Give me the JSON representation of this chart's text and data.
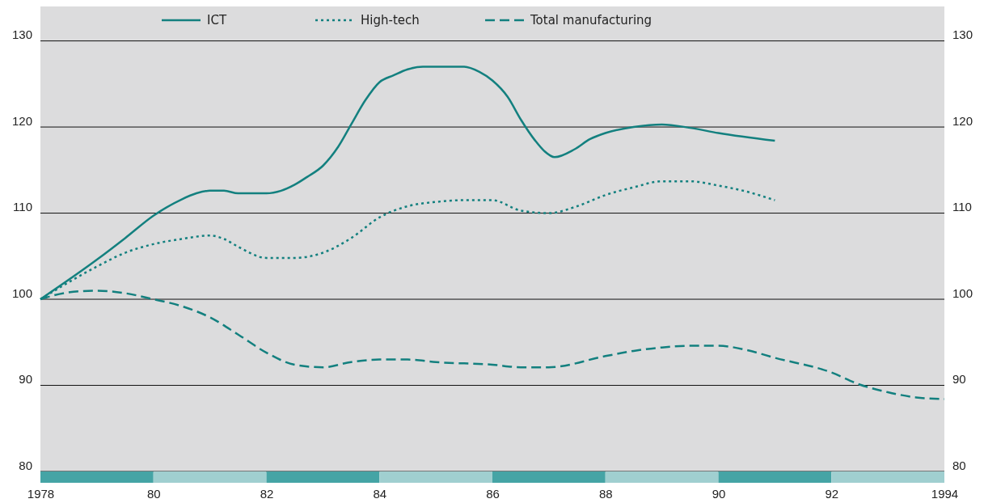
{
  "chart_data": {
    "type": "line",
    "xlim": [
      1978,
      1994
    ],
    "xticks": [
      1978,
      {
        "value": 1980,
        "label": "80"
      },
      {
        "value": 1982,
        "label": "82"
      },
      {
        "value": 1984,
        "label": "84"
      },
      {
        "value": 1986,
        "label": "86"
      },
      {
        "value": 1988,
        "label": "88"
      },
      {
        "value": 1990,
        "label": "90"
      },
      {
        "value": 1992,
        "label": "92"
      },
      1994
    ],
    "ylim": [
      80,
      134
    ],
    "yticks": [
      80,
      90,
      100,
      110,
      120,
      130
    ],
    "y2lim": [
      80,
      134
    ],
    "y2ticks": [
      80,
      90,
      100,
      110,
      120,
      130
    ],
    "grid": "y",
    "legend": "top",
    "marker": "none",
    "series": [
      {
        "name": "ICT",
        "color": "#13807f",
        "line_style": "solid",
        "x": [
          1978,
          1979,
          1979.5,
          1980,
          1980.5,
          1980.76,
          1981,
          1981.25,
          1981.5,
          1982,
          1982.26,
          1982.5,
          1982.72,
          1983,
          1983.27,
          1983.5,
          1983.75,
          1984,
          1984.25,
          1984.5,
          1984.77,
          1985.5,
          1985.77,
          1986,
          1986.27,
          1986.5,
          1986.76,
          1986.92,
          1987.1,
          1987.45,
          1987.73,
          1988,
          1988.5,
          1989,
          1989.5,
          1990,
          1991
        ],
        "values": [
          100,
          104.6,
          107.1,
          109.7,
          111.6,
          112.3,
          112.6,
          112.6,
          112.3,
          112.3,
          112.6,
          113.3,
          114.2,
          115.5,
          117.7,
          120.3,
          123.1,
          125.2,
          126,
          126.7,
          127,
          127,
          126.4,
          125.4,
          123.5,
          120.9,
          118.4,
          117.2,
          116.5,
          117.4,
          118.6,
          119.3,
          120,
          120.3,
          119.9,
          119.3,
          118.4
        ]
      },
      {
        "name": "High-tech",
        "color": "#13807f",
        "line_style": "dotted",
        "x": [
          1978,
          1979,
          1979.5,
          1980,
          1980.5,
          1981,
          1981.25,
          1981.5,
          1982,
          1982.5,
          1983,
          1983.5,
          1984,
          1984.5,
          1985,
          1985.5,
          1986,
          1986.5,
          1987,
          1987.5,
          1988,
          1988.5,
          1989,
          1989.5,
          1990,
          1990.5,
          1991
        ],
        "values": [
          100,
          103.8,
          105.4,
          106.4,
          107,
          107.4,
          107,
          106.1,
          104.8,
          104.8,
          105.4,
          107.1,
          109.5,
          110.8,
          111.3,
          111.5,
          111.5,
          110.3,
          110,
          110.8,
          112.1,
          113,
          113.7,
          113.7,
          113.2,
          112.5,
          111.5
        ]
      },
      {
        "name": "Total manufacturing",
        "color": "#13807f",
        "line_style": "dashed",
        "x": [
          1978,
          1978.5,
          1979,
          1979.5,
          1980,
          1980.5,
          1981,
          1981.5,
          1982,
          1982.5,
          1983,
          1983.5,
          1984,
          1984.5,
          1985,
          1986,
          1986.5,
          1987,
          1988,
          1988.5,
          1989,
          1989.5,
          1990,
          1990.5,
          1991,
          1992,
          1992.5,
          1993,
          1993.5,
          1994
        ],
        "values": [
          100,
          100.8,
          101,
          100.7,
          100,
          99.2,
          97.9,
          95.9,
          93.8,
          92.4,
          92.1,
          92.7,
          93,
          93,
          92.7,
          92.4,
          92.1,
          92.1,
          93.4,
          94,
          94.4,
          94.6,
          94.6,
          94.1,
          93.2,
          91.5,
          90.1,
          89.2,
          88.6,
          88.4
        ]
      }
    ]
  }
}
